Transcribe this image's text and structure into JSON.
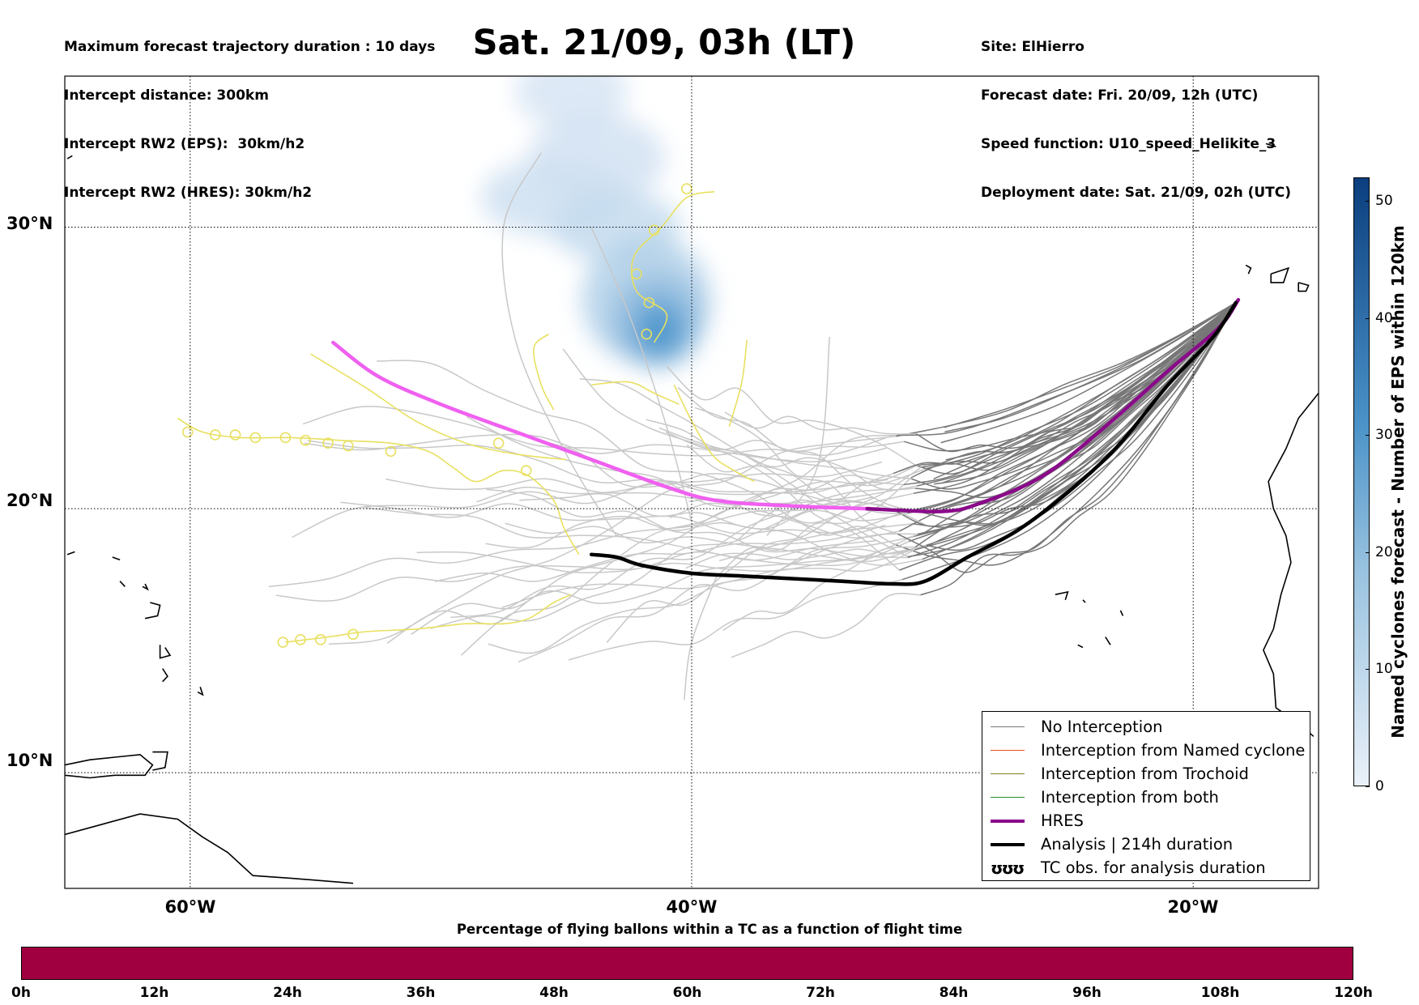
{
  "header": {
    "left_lines": [
      "Maximum forecast trajectory duration : 10 days",
      "Intercept distance: 300km",
      "Intercept RW2 (EPS):  30km/h2",
      "Intercept RW2 (HRES): 30km/h2"
    ],
    "title": "Sat. 21/09, 03h (LT)",
    "right_lines": [
      "Site: ElHierro",
      "Forecast date: Fri. 20/09, 12h (UTC)",
      "Speed function: U10_speed_Helikite_3",
      "Deployment date: Sat. 21/09, 02h (UTC)"
    ]
  },
  "map": {
    "lon_range": [
      -65,
      -15
    ],
    "lat_range": [
      5.5,
      35
    ],
    "lat_labels": [
      "30°N",
      "20°N",
      "10°N"
    ],
    "lat_values": [
      30,
      20,
      10
    ],
    "lon_labels": [
      "60°W",
      "40°W",
      "20°W"
    ],
    "lon_values": [
      -60,
      -40,
      -20
    ],
    "colors": {
      "eps_no_interception": "#777777",
      "eps_far": "#c8c8c8",
      "hres": "#8a0a8a",
      "hres_early": "#f060f0",
      "analysis": "#000000",
      "tc_tracks": "#e8e060",
      "density_low": "#dfeaf6",
      "density_high": "#3a8cc8",
      "coastline": "#000000"
    },
    "hres_track": [
      [
        -18.2,
        27.5
      ],
      [
        -19,
        26.5
      ],
      [
        -21,
        25
      ],
      [
        -23.5,
        23
      ],
      [
        -26,
        21.2
      ],
      [
        -28.5,
        20.2
      ],
      [
        -30,
        19.9
      ],
      [
        -33,
        20
      ],
      [
        -36,
        20.1
      ],
      [
        -39,
        20.3
      ],
      [
        -41,
        20.8
      ],
      [
        -44,
        21.8
      ],
      [
        -47,
        22.8
      ],
      [
        -50,
        23.8
      ],
      [
        -52.5,
        24.8
      ],
      [
        -54.3,
        26
      ]
    ],
    "analysis_track": [
      [
        -18.3,
        27.4
      ],
      [
        -19.2,
        26.2
      ],
      [
        -21,
        24.5
      ],
      [
        -23,
        22.3
      ],
      [
        -25,
        20.6
      ],
      [
        -27,
        19.2
      ],
      [
        -29,
        18.2
      ],
      [
        -30.7,
        17.3
      ],
      [
        -32,
        17.2
      ],
      [
        -34,
        17.3
      ],
      [
        -36,
        17.4
      ],
      [
        -38,
        17.5
      ],
      [
        -40,
        17.6
      ],
      [
        -42,
        17.9
      ],
      [
        -43,
        18.2
      ],
      [
        -44,
        18.3
      ]
    ],
    "tc_tracks": [
      [
        [
          -60.5,
          23.3
        ],
        [
          -59.5,
          22.8
        ],
        [
          -58,
          22.6
        ],
        [
          -56,
          22.6
        ],
        [
          -54,
          22.5
        ],
        [
          -52,
          22.4
        ],
        [
          -50.5,
          22.1
        ],
        [
          -49.5,
          21.5
        ],
        [
          -48.6,
          21
        ],
        [
          -47.5,
          21.4
        ],
        [
          -46.5,
          21.2
        ],
        [
          -45.5,
          20.3
        ],
        [
          -45.1,
          19.3
        ],
        [
          -44.5,
          18.3
        ]
      ],
      [
        [
          -55.2,
          25.6
        ],
        [
          -53,
          24.4
        ],
        [
          -51,
          23.2
        ],
        [
          -49,
          22.4
        ],
        [
          -47,
          22
        ],
        [
          -45,
          21.8
        ]
      ],
      [
        [
          -41.5,
          26
        ],
        [
          -41,
          27
        ],
        [
          -42.2,
          27.8
        ],
        [
          -42.3,
          29
        ],
        [
          -41.2,
          30
        ],
        [
          -40.2,
          31
        ],
        [
          -39.1,
          31.2
        ]
      ],
      [
        [
          -40.7,
          24.5
        ],
        [
          -40,
          23.2
        ],
        [
          -39.2,
          22
        ],
        [
          -38.5,
          21.5
        ],
        [
          -37.5,
          21
        ]
      ],
      [
        [
          -44,
          24.5
        ],
        [
          -42.5,
          24.6
        ],
        [
          -41.5,
          24.2
        ],
        [
          -40.5,
          23.8
        ]
      ],
      [
        [
          -37.8,
          26.1
        ],
        [
          -38,
          24.6
        ],
        [
          -38.5,
          23
        ]
      ],
      [
        [
          -45.7,
          26.3
        ],
        [
          -46.3,
          25.8
        ],
        [
          -46,
          24.5
        ],
        [
          -45.5,
          23.6
        ]
      ],
      [
        [
          -56.2,
          15
        ],
        [
          -54.5,
          15.2
        ],
        [
          -53,
          15.4
        ],
        [
          -51,
          15.5
        ],
        [
          -49,
          15.7
        ],
        [
          -47.5,
          15.7
        ],
        [
          -46.5,
          15.9
        ],
        [
          -45.5,
          16.5
        ],
        [
          -44.8,
          16.8
        ]
      ]
    ],
    "tc_loops": [
      [
        -60.1,
        22.8
      ],
      [
        -59,
        22.7
      ],
      [
        -58.2,
        22.7
      ],
      [
        -57.4,
        22.6
      ],
      [
        -56.2,
        22.6
      ],
      [
        -55.4,
        22.5
      ],
      [
        -54.5,
        22.4
      ],
      [
        -53.7,
        22.3
      ],
      [
        -52,
        22.1
      ],
      [
        -56.3,
        15
      ],
      [
        -55.6,
        15.1
      ],
      [
        -54.8,
        15.1
      ],
      [
        -53.5,
        15.3
      ],
      [
        -41.8,
        26.3
      ],
      [
        -47.7,
        22.4
      ],
      [
        -46.6,
        21.4
      ],
      [
        -41.7,
        27.4
      ],
      [
        -42.2,
        28.4
      ],
      [
        -41.5,
        29.9
      ],
      [
        -40.2,
        31.3
      ]
    ],
    "density_blobs": [
      {
        "lon": -44.8,
        "lat": 34.5,
        "rx": 70,
        "ry": 45,
        "level": 0.05
      },
      {
        "lon": -43.8,
        "lat": 32.3,
        "rx": 85,
        "ry": 55,
        "level": 0.08
      },
      {
        "lon": -45.5,
        "lat": 31.0,
        "rx": 90,
        "ry": 48,
        "level": 0.1
      },
      {
        "lon": -43.0,
        "lat": 30.0,
        "rx": 80,
        "ry": 45,
        "level": 0.15
      },
      {
        "lon": -41.8,
        "lat": 27.5,
        "rx": 80,
        "ry": 78,
        "level": 0.28
      },
      {
        "lon": -41.4,
        "lat": 26.8,
        "rx": 58,
        "ry": 60,
        "level": 0.45
      },
      {
        "lon": -41.3,
        "lat": 26.5,
        "rx": 38,
        "ry": 40,
        "level": 0.7
      },
      {
        "lon": -41.3,
        "lat": 26.4,
        "rx": 20,
        "ry": 22,
        "level": 0.95
      }
    ]
  },
  "legend": {
    "items": [
      {
        "label": "No Interception",
        "kind": "line",
        "color": "#777777",
        "width": 1
      },
      {
        "label": "Interception from Named cyclone",
        "kind": "line",
        "color": "#e8501a",
        "width": 1
      },
      {
        "label": "Interception from Trochoid",
        "kind": "line",
        "color": "#7f7f1e",
        "width": 1
      },
      {
        "label": "Interception from both",
        "kind": "line",
        "color": "#2a8a2a",
        "width": 1
      },
      {
        "label": "HRES",
        "kind": "line",
        "color": "#8a0a8a",
        "width": 4
      },
      {
        "label": "Analysis | 214h duration",
        "kind": "line",
        "color": "#000000",
        "width": 4
      },
      {
        "label": "TC obs. for analysis duration",
        "kind": "glyph",
        "glyph": "ʊʊʊ"
      }
    ]
  },
  "colorbar": {
    "label": "Named cyclones forecast - Number of EPS within 120km",
    "range": [
      0,
      52
    ],
    "ticks": [
      "0",
      "10",
      "20",
      "30",
      "40",
      "50"
    ],
    "tick_values": [
      0,
      10,
      20,
      30,
      40,
      50
    ],
    "color_low": "#eaf1f9",
    "color_high": "#0b3e7e"
  },
  "bottom_bar": {
    "title": "Percentage of flying ballons within a TC as a function of flight time",
    "ticks": [
      "0h",
      "12h",
      "24h",
      "36h",
      "48h",
      "60h",
      "72h",
      "84h",
      "96h",
      "108h",
      "120h"
    ],
    "color": "#a0003f"
  }
}
